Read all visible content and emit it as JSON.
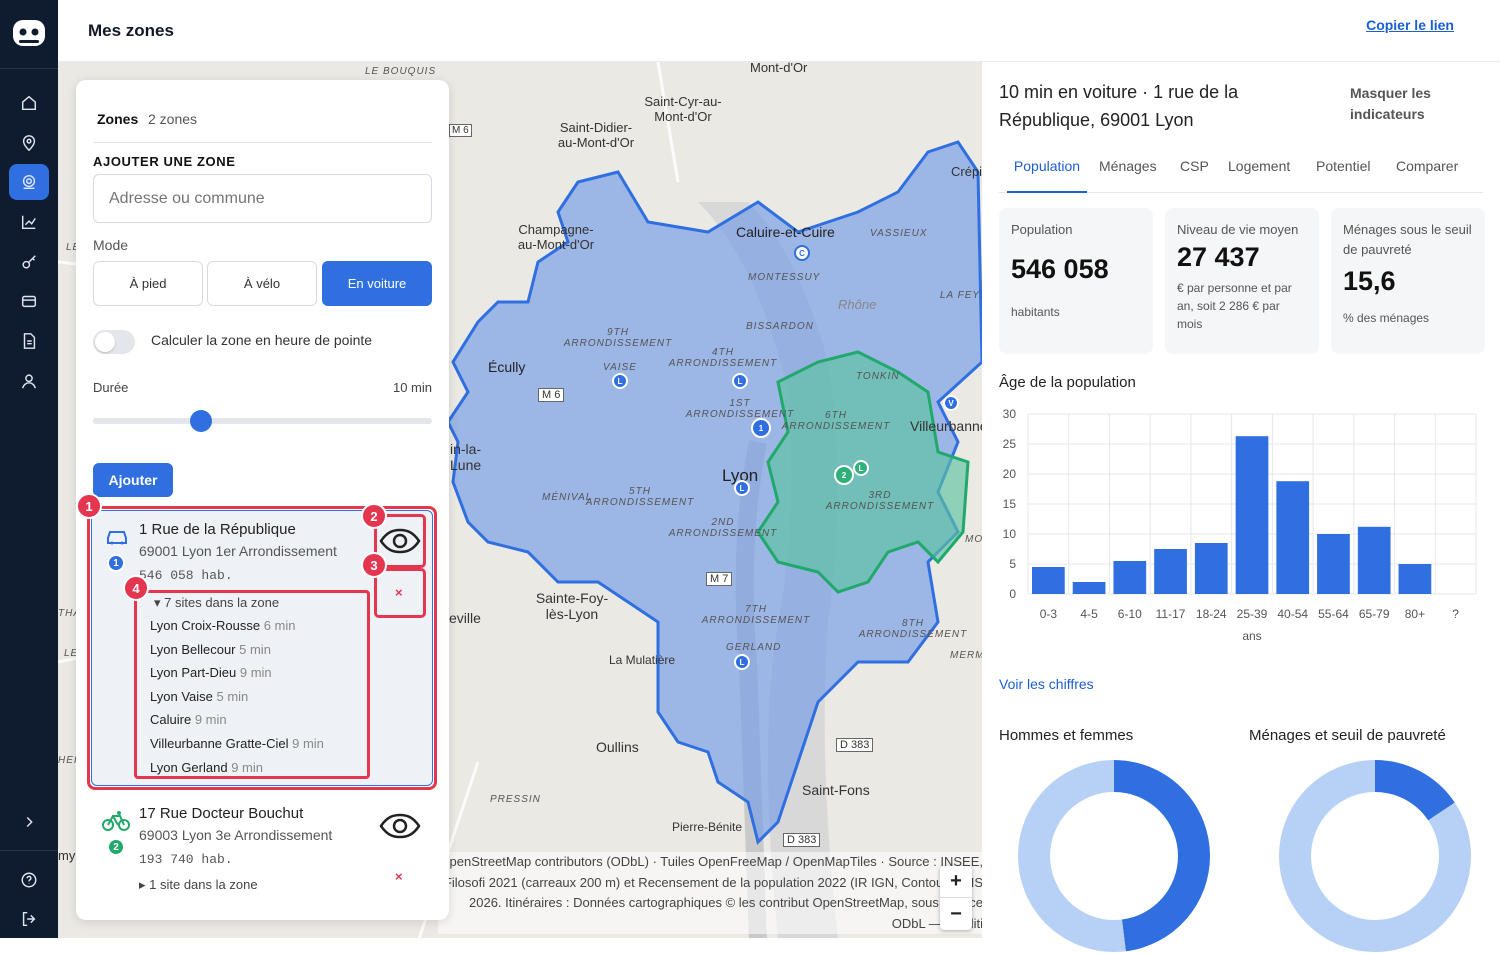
{
  "app": {
    "title": "Mes zones",
    "copy_link": "Copier le lien"
  },
  "colors": {
    "primary": "#2f6fe0",
    "rail": "#0f1b2e",
    "highlight": "#e5364f",
    "zone_blue": "#6b96e0",
    "zone_green": "#3fb88a"
  },
  "rail": {
    "items": [
      "home-icon",
      "map-pin-icon",
      "zones-icon",
      "chart-icon",
      "key-icon",
      "card-icon",
      "document-icon",
      "user-icon"
    ],
    "bottom": [
      "chevron-right-icon",
      "help-icon",
      "logout-icon"
    ]
  },
  "panel": {
    "header": "Zones",
    "count": "2 zones",
    "add_title": "AJOUTER UNE ZONE",
    "address_placeholder": "Adresse ou commune",
    "mode_label": "Mode",
    "modes": [
      "À pied",
      "À vélo",
      "En voiture"
    ],
    "selected_mode": "En voiture",
    "peak_label": "Calculer la zone en heure de pointe",
    "peak_enabled": false,
    "duration_label": "Durée",
    "duration_value": "10 min",
    "duration_fraction": 0.32,
    "add_button": "Ajouter",
    "zones": [
      {
        "title": "1 Rue de la République",
        "subtitle": "69001 Lyon 1er Arrondissement",
        "population": "546 058 hab.",
        "number": "1",
        "mode": "car-icon",
        "sites_header": "7 sites dans la zone",
        "sites": [
          {
            "name": "Lyon Croix-Rousse",
            "time": "6 min"
          },
          {
            "name": "Lyon Bellecour",
            "time": "5 min"
          },
          {
            "name": "Lyon Part-Dieu",
            "time": "9 min"
          },
          {
            "name": "Lyon Vaise",
            "time": "5 min"
          },
          {
            "name": "Caluire",
            "time": "9 min"
          },
          {
            "name": "Villeurbanne Gratte-Ciel",
            "time": "9 min"
          },
          {
            "name": "Lyon Gerland",
            "time": "9 min"
          }
        ]
      },
      {
        "title": "17 Rue Docteur Bouchut",
        "subtitle": "69003 Lyon 3e Arrondissement",
        "population": "193 740 hab.",
        "number": "2",
        "mode": "bike-icon",
        "sites_header": "1 site dans la zone"
      }
    ],
    "annotations": [
      "1",
      "2",
      "3",
      "4"
    ],
    "remove_label": "×"
  },
  "map": {
    "labels": [
      "LE BOUQUIS",
      "Mont-d'Or",
      "Saint-Cyr-au-Mont-d'Or",
      "Saint-Didier-au-Mont-d'Or",
      "Champagne-au-Mont-d'Or",
      "Caluire-et-Cuire",
      "VASSIEUX",
      "Crépi",
      "MONTESSUY",
      "Rhône",
      "LA FEYS",
      "BISSARDON",
      "9TH ARRONDISSEMENT",
      "4TH ARRONDISSEMENT",
      "Écully",
      "VAISE",
      "M 6",
      "1ST ARRONDISSEMENT",
      "TONKIN",
      "6TH ARRONDISSEMENT",
      "Villeurbanne",
      "in-la-Lune",
      "Lyon",
      "5TH ARRONDISSEMENT",
      "MÉNIVAL",
      "3RD ARRONDISSEMENT",
      "2ND ARRONDISSEMENT",
      "M 7",
      "Sainte-Foy-lès-Lyon",
      "7TH ARRONDISSEMENT",
      "8TH ARRONDISSEMENT",
      "GERLAND",
      "La Mulatière",
      "MERM",
      "Oullins",
      "D 383",
      "Saint-Fons",
      "PRESSIN",
      "Pierre-Bénite",
      "D 383",
      "eville",
      "M 6",
      "LE",
      "LE",
      "THA",
      "HEI",
      "my",
      "MO"
    ],
    "attribution": "OpenStreetMap contributors (ODbL) · Tuiles OpenFreeMap / OpenMapTiles · Source : INSEE, Filosofi 2021 (carreaux 200 m) et Recensement de la population 2022 (IR IGN, Contours IRIS 2026. Itinéraires : Données cartographiques © les contribut OpenStreetMap, sous licence ODbL — conditi",
    "zoom_in": "+",
    "zoom_out": "−"
  },
  "right": {
    "title": "10 min en voiture · 1 rue de la République, 69001 Lyon",
    "hide": "Masquer les indicateurs",
    "tabs": [
      "Population",
      "Ménages",
      "CSP",
      "Logement",
      "Potentiel",
      "Comparer"
    ],
    "active_tab": "Population",
    "kpis": [
      {
        "label": "Population",
        "value": "546 058",
        "unit": "habitants"
      },
      {
        "label": "Niveau de vie moyen",
        "value": "27 437",
        "unit": "€ par personne et par an, soit 2 286 € par mois"
      },
      {
        "label": "Ménages sous le seuil de pauvreté",
        "value": "15,6",
        "unit": "% des ménages"
      }
    ],
    "age_title": "Âge de la population",
    "link": "Voir les chiffres",
    "donut1_title": "Hommes et femmes",
    "donut2_title": "Ménages et seuil de pauvreté"
  },
  "chart_data": [
    {
      "type": "bar",
      "title": "Âge de la population",
      "categories": [
        "0-3",
        "4-5",
        "6-10",
        "11-17",
        "18-24",
        "25-39 ans",
        "40-54",
        "55-64",
        "65-79",
        "80+",
        "?"
      ],
      "values": [
        4.5,
        2,
        5.5,
        7.5,
        8.5,
        26.3,
        18.8,
        10,
        11.2,
        5,
        0
      ],
      "ylim": [
        0,
        30
      ],
      "yticks": [
        0,
        5,
        10,
        15,
        20,
        25,
        30
      ],
      "grid": true,
      "color": "#2f6fe0"
    },
    {
      "type": "pie",
      "title": "Hommes et femmes",
      "values": [
        48,
        52
      ],
      "colors": [
        "#2f6fe0",
        "#b6d0f6"
      ]
    },
    {
      "type": "pie",
      "title": "Ménages et seuil de pauvreté",
      "values": [
        15.6,
        84.4
      ],
      "colors": [
        "#2f6fe0",
        "#b6d0f6"
      ]
    }
  ]
}
